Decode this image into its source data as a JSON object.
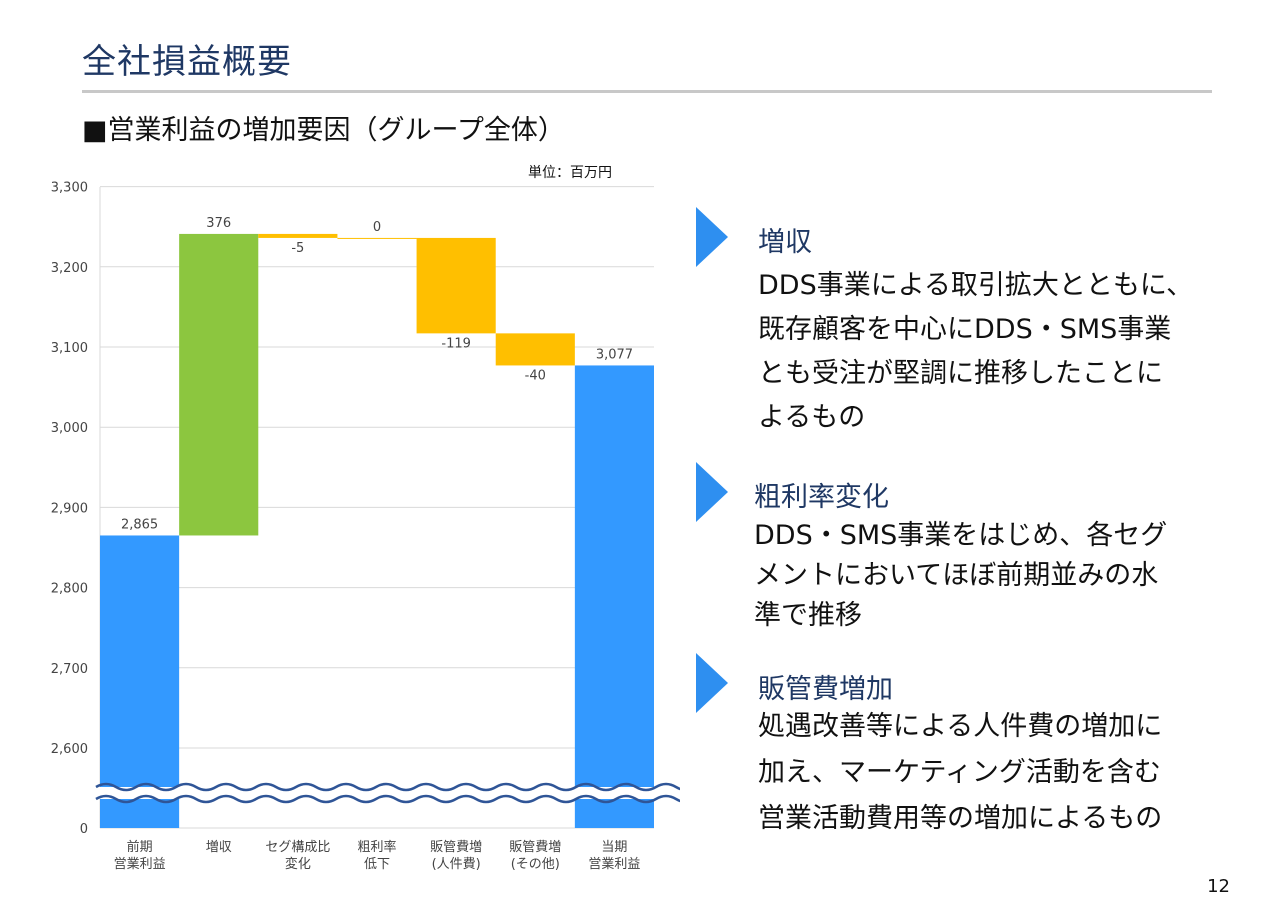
{
  "page": {
    "title": "全社損益概要",
    "subtitle": "■営業利益の増加要因（グループ全体）",
    "unit": "単位：百万円",
    "page_number": "12"
  },
  "colors": {
    "blue": "#3399ff",
    "green": "#8cc63f",
    "yellow": "#ffbf00",
    "arrow": "#2e8ff0",
    "title": "#1f3864"
  },
  "chart_data": {
    "type": "bar",
    "subtype": "waterfall",
    "categories": [
      [
        "前期",
        "営業利益"
      ],
      [
        "増収"
      ],
      [
        "セグ構成比",
        "変化"
      ],
      [
        "粗利率",
        "低下"
      ],
      [
        "販管費増",
        "(人件費)"
      ],
      [
        "販管費増",
        "(その他)"
      ],
      [
        "当期",
        "営業利益"
      ]
    ],
    "bars": [
      {
        "base": 0,
        "top": 2865,
        "label": "2,865",
        "color": "blue"
      },
      {
        "base": 2865,
        "top": 3241,
        "label": "376",
        "color": "green"
      },
      {
        "base": 3236,
        "top": 3241,
        "label": "-5",
        "color": "yellow"
      },
      {
        "base": 3236,
        "top": 3236,
        "label": "0",
        "color": "yellow"
      },
      {
        "base": 3117,
        "top": 3236,
        "label": "-119",
        "color": "yellow"
      },
      {
        "base": 3077,
        "top": 3117,
        "label": "-40",
        "color": "yellow"
      },
      {
        "base": 0,
        "top": 3077,
        "label": "3,077",
        "color": "blue"
      }
    ],
    "yticks": [
      "0",
      "2,600",
      "2,700",
      "2,800",
      "2,900",
      "3,000",
      "3,100",
      "3,200",
      "3,300"
    ],
    "ylim": [
      2520,
      3300
    ],
    "axis_break": true
  },
  "reasons": [
    {
      "heading": "増収",
      "lines": [
        "DDS事業による取引拡大とともに、",
        "既存顧客を中心にDDS・SMS事業",
        "とも受注が堅調に推移したことに",
        "よるもの"
      ]
    },
    {
      "heading": "粗利率変化",
      "lines": [
        "DDS・SMS事業をはじめ、各セグ",
        "メントにおいてほぼ前期並みの水",
        "準で推移"
      ]
    },
    {
      "heading": "販管費増加",
      "lines": [
        "処遇改善等による人件費の増加に",
        "加え、マーケティング活動を含む",
        "営業活動費用等の増加によるもの"
      ]
    }
  ]
}
